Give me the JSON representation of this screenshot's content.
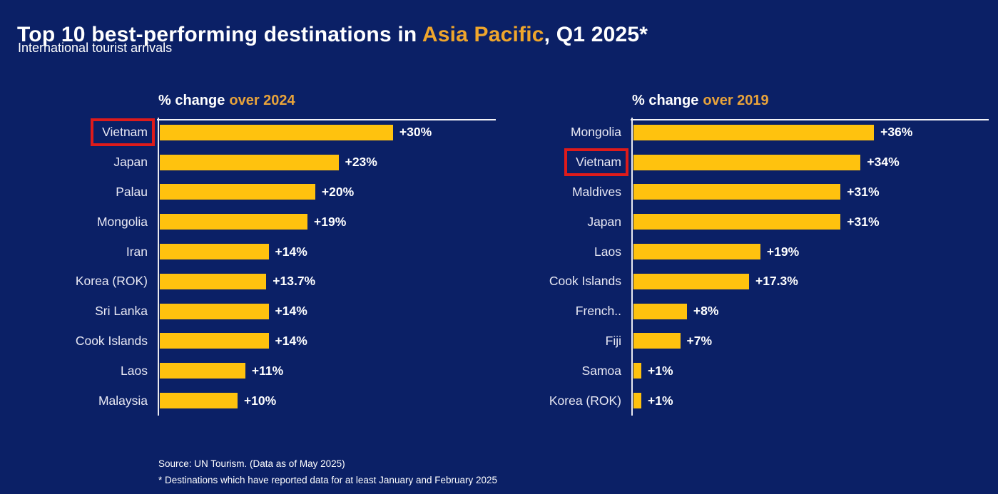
{
  "header": {
    "title_prefix": "Top 10 best-performing destinations in ",
    "title_accent": "Asia Pacific",
    "title_suffix": ", Q1 2025*",
    "subtitle": "International tourist arrivals"
  },
  "colors": {
    "background": "#0B2066",
    "bar": "#FFC20E",
    "title_accent_gold": "#EFA62C",
    "chart_title_gold": "#E8A33B",
    "highlight_box_red": "#DE1B1B",
    "axis_line": "#E9E9F0",
    "text": "#FFFFFF"
  },
  "chart_data": [
    {
      "type": "bar",
      "orientation": "horizontal",
      "title_plain": "% change",
      "title_accent": "over 2024",
      "categories": [
        "Vietnam",
        "Japan",
        "Palau",
        "Mongolia",
        "Iran",
        "Korea (ROK)",
        "Sri Lanka",
        "Cook Islands",
        "Laos",
        "Malaysia"
      ],
      "values": [
        30,
        23,
        20,
        19,
        14,
        13.7,
        14,
        14,
        11,
        10
      ],
      "labels": [
        "+30%",
        "+23%",
        "+20%",
        "+19%",
        "+14%",
        "+13.7%",
        "+14%",
        "+14%",
        "+11%",
        "+10%"
      ],
      "highlighted_category": "Vietnam",
      "xlim": [
        0,
        43.5
      ],
      "grid": false,
      "legend": "none",
      "bar_color": "#FFC20E"
    },
    {
      "type": "bar",
      "orientation": "horizontal",
      "title_plain": "% change",
      "title_accent": "over 2019",
      "categories": [
        "Mongolia",
        "Vietnam",
        "Maldives",
        "Japan",
        "Laos",
        "Cook Islands",
        "French..",
        "Fiji",
        "Samoa",
        "Korea (ROK)"
      ],
      "values": [
        36,
        34,
        31,
        31,
        19,
        17.3,
        8,
        7,
        1,
        1
      ],
      "labels": [
        "+36%",
        "+34%",
        "+31%",
        "+31%",
        "+19%",
        "+17.3%",
        "+8%",
        "+7%",
        "+1%",
        "+1%"
      ],
      "highlighted_category": "Vietnam",
      "xlim": [
        0,
        53.5
      ],
      "grid": false,
      "legend": "none",
      "bar_color": "#FFC20E"
    }
  ],
  "footer": {
    "source": "Source: UN Tourism. (Data as of May 2025)",
    "note": "* Destinations which have reported data for at least January and February 2025"
  }
}
